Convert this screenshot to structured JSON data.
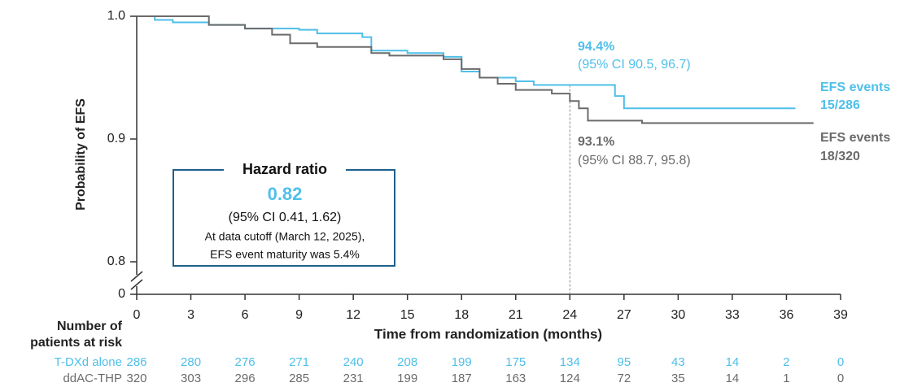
{
  "chart_data": {
    "type": "line",
    "step": true,
    "x_label": "Time from randomization (months)",
    "y_label": "Probability of EFS",
    "xlim": [
      0,
      39
    ],
    "xticks": [
      0,
      3,
      6,
      9,
      12,
      15,
      18,
      21,
      24,
      27,
      30,
      33,
      36,
      39
    ],
    "ylim": [
      0.8,
      1.0
    ],
    "yticks": [
      0,
      0.8,
      0.9,
      {
        "value": 1.0,
        "label": "1.0"
      }
    ],
    "reference_x": 24,
    "series": [
      {
        "name": "T-DXd alone",
        "color": "#4fbfea",
        "x": [
          0,
          1,
          2,
          4,
          6,
          9,
          10,
          12.5,
          13,
          15,
          17,
          18,
          19,
          21,
          22,
          26.5,
          27,
          36.5
        ],
        "values": [
          1.0,
          0.997,
          0.995,
          0.993,
          0.99,
          0.989,
          0.986,
          0.983,
          0.972,
          0.97,
          0.967,
          0.955,
          0.95,
          0.947,
          0.944,
          0.935,
          0.925,
          0.925
        ],
        "estimate": {
          "value": 94.4,
          "label": "94.4%"
        },
        "ci": "(95% CI 90.5, 96.7)",
        "events": [
          "EFS events",
          "15/286"
        ],
        "at_risk": [
          286,
          280,
          276,
          271,
          240,
          208,
          199,
          175,
          134,
          95,
          43,
          14,
          2,
          0
        ]
      },
      {
        "name": "ddAC-THP",
        "color": "#6b6b6b",
        "x": [
          0,
          4,
          6,
          7.5,
          8.5,
          10,
          13,
          14,
          17,
          18,
          19,
          20,
          21,
          23,
          24,
          24.5,
          25,
          28,
          37.5
        ],
        "values": [
          1.0,
          0.993,
          0.99,
          0.985,
          0.978,
          0.975,
          0.97,
          0.968,
          0.965,
          0.957,
          0.95,
          0.945,
          0.94,
          0.937,
          0.931,
          0.925,
          0.915,
          0.913,
          0.913
        ],
        "estimate": {
          "value": 93.1,
          "label": "93.1%"
        },
        "ci": "(95% CI 88.7, 95.8)",
        "events": [
          "EFS events",
          "18/320"
        ],
        "at_risk": [
          320,
          303,
          296,
          285,
          231,
          199,
          187,
          163,
          124,
          72,
          35,
          14,
          1,
          0
        ]
      }
    ],
    "hazard_ratio": {
      "title": "Hazard ratio",
      "value": 0.82,
      "ci": "(95% CI 0.41, 1.62)",
      "notes": [
        "At data cutoff (March 12, 2025),",
        "EFS event maturity was 5.4%"
      ]
    },
    "risk_table_title": "Number of patients at risk"
  }
}
